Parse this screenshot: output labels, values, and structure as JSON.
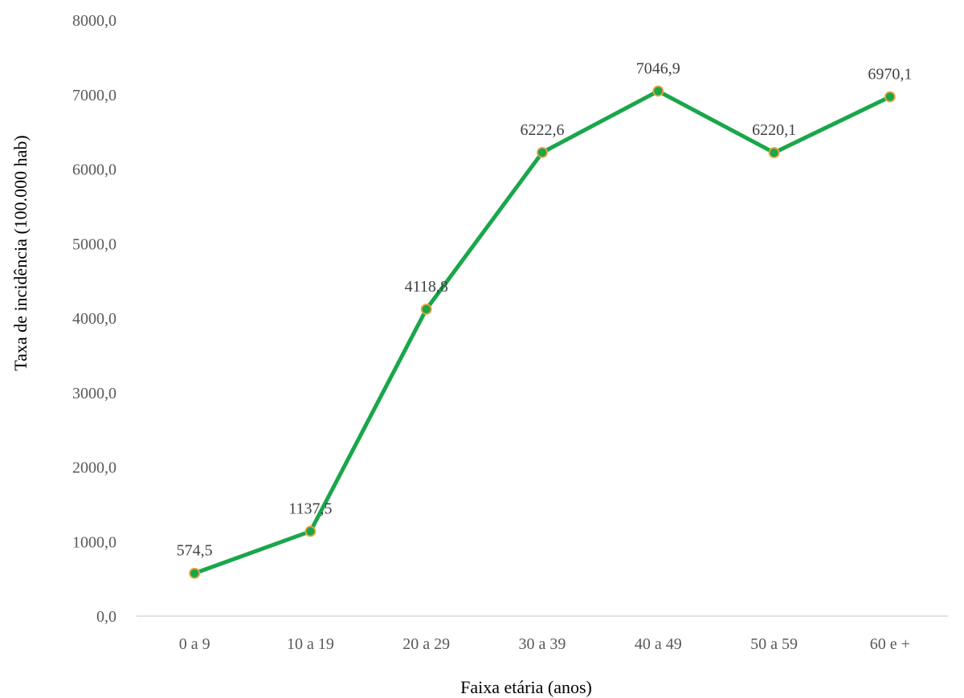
{
  "chart_data": {
    "type": "line",
    "title": "",
    "xlabel": "Faixa etária (anos)",
    "ylabel": "Taxa de incidência (100.000 hab)",
    "categories": [
      "0 a 9",
      "10 a 19",
      "20 a 29",
      "30 a 39",
      "40 a 49",
      "50 a 59",
      "60 e +"
    ],
    "values": [
      574.5,
      1137.5,
      4118.8,
      6222.6,
      7046.9,
      6220.1,
      6970.1
    ],
    "value_labels": [
      "574,5",
      "1137,5",
      "4118,8",
      "6222,6",
      "7046,9",
      "6220,1",
      "6970,1"
    ],
    "ylim": [
      0,
      8000
    ],
    "yticks": [
      0,
      1000,
      2000,
      3000,
      4000,
      5000,
      6000,
      7000,
      8000
    ],
    "ytick_labels": [
      "0,0",
      "1000,0",
      "2000,0",
      "3000,0",
      "4000,0",
      "5000,0",
      "6000,0",
      "7000,0",
      "8000,0"
    ],
    "grid": false,
    "legend": "none",
    "colors": {
      "line": "#1aa64b",
      "marker_fill": "#1aa64b",
      "marker_edge": "#e8a33a",
      "axis": "#d9d9d9"
    }
  }
}
